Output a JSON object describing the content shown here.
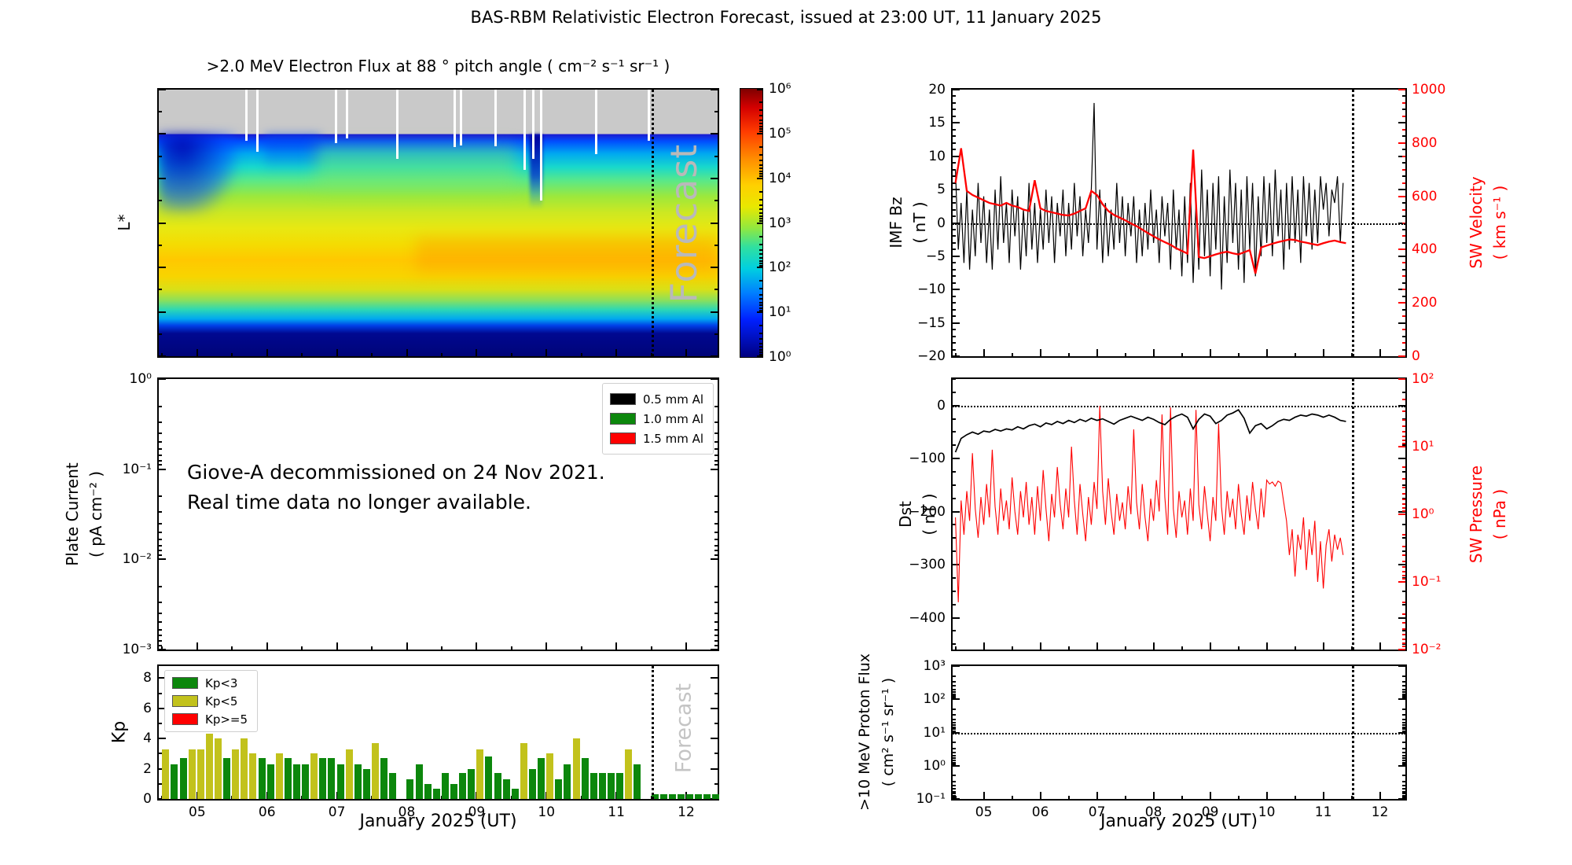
{
  "title": "BAS-RBM Relativistic Electron Forecast, issued at 23:00 UT, 11 January 2025",
  "colors": {
    "green": "#0c870c",
    "olive": "#c2c21c",
    "red": "#ff0000",
    "black": "#000000",
    "nodata_gray": "#c9c9c9",
    "watermark": "#b9b9b9"
  },
  "xaxis": {
    "label": "January 2025 (UT)",
    "min": 4.45,
    "max": 12.45,
    "ticks": [
      5,
      6,
      7,
      8,
      9,
      10,
      11,
      12
    ],
    "tick_labels": [
      "05",
      "06",
      "07",
      "08",
      "09",
      "10",
      "11",
      "12"
    ],
    "forecast_start": 11.5
  },
  "spectrogram": {
    "title": ">2.0 MeV Electron Flux at 88 ° pitch angle ( cm⁻² s⁻¹ sr⁻¹ )",
    "ylabel": "L*",
    "yticks": [
      8,
      7,
      6,
      5,
      4,
      3,
      2
    ],
    "forecast_label": "Forecast",
    "colorbar_tick_labels": [
      "10⁶",
      "10⁵",
      "10⁴",
      "10³",
      "10²",
      "10¹",
      "10⁰"
    ],
    "gaps": [
      {
        "x": 0.155,
        "d": 0.15
      },
      {
        "x": 0.175,
        "d": 0.4
      },
      {
        "x": 0.315,
        "d": 0.2
      },
      {
        "x": 0.335,
        "d": 0.1
      },
      {
        "x": 0.425,
        "d": 0.55
      },
      {
        "x": 0.527,
        "d": 0.3
      },
      {
        "x": 0.538,
        "d": 0.25
      },
      {
        "x": 0.6,
        "d": 0.28
      },
      {
        "x": 0.652,
        "d": 0.8
      },
      {
        "x": 0.668,
        "d": 0.55
      },
      {
        "x": 0.682,
        "d": 1.5
      },
      {
        "x": 0.78,
        "d": 0.45
      },
      {
        "x": 0.875,
        "d": 0.15
      }
    ]
  },
  "plate": {
    "ylabel_line1": "Plate Current",
    "ylabel_line2": "( pA cm⁻² )",
    "ytick_labels": [
      "10⁰",
      "10⁻¹",
      "10⁻²",
      "10⁻³"
    ],
    "legend": [
      {
        "label": "0.5 mm Al",
        "color": "#000000"
      },
      {
        "label": "1.0 mm Al",
        "color": "#0c870c"
      },
      {
        "label": "1.5 mm Al",
        "color": "#ff0000"
      }
    ],
    "annotation_line1": "Giove-A decommissioned on 24 Nov 2021.",
    "annotation_line2": "Real time data no longer available."
  },
  "kp": {
    "ylabel": "Kp",
    "yticks": [
      0,
      2,
      4,
      6,
      8
    ],
    "ymax": 8.8,
    "legend": [
      {
        "label": "Kp<3",
        "color": "#0c870c"
      },
      {
        "label": "Kp<5",
        "color": "#c2c21c"
      },
      {
        "label": "Kp>=5",
        "color": "#ff0000"
      }
    ],
    "forecast_label": "Forecast"
  },
  "imf": {
    "ylabel_line1": "IMF Bz",
    "ylabel_line2": "( nT )",
    "ymin": -20,
    "ymax": 20,
    "yticks": [
      20,
      15,
      10,
      5,
      0,
      -5,
      -10,
      -15,
      -20
    ],
    "y2label_line1": "SW Velocity",
    "y2label_line2": "( km s⁻¹ )",
    "y2min": 0,
    "y2max": 1000,
    "y2ticks": [
      1000,
      800,
      600,
      400,
      200,
      0
    ]
  },
  "dst": {
    "ylabel_line1": "Dst",
    "ylabel_line2": "( nT )",
    "ymin": -460,
    "ymax": 50,
    "yticks": [
      0,
      -100,
      -200,
      -300,
      -400
    ],
    "y2label_line1": "SW Pressure",
    "y2label_line2": "( nPa )",
    "y2tick_labels": [
      "10²",
      "10¹",
      "10⁰",
      "10⁻¹",
      "10⁻²"
    ]
  },
  "proton": {
    "ylabel_line1": ">10 MeV Proton Flux",
    "ylabel_line2": "( cm² s⁻¹ sr⁻¹ )",
    "ytick_labels": [
      "10³",
      "10²",
      "10¹",
      "10⁰",
      "10⁻¹"
    ]
  },
  "chart_data": [
    {
      "name": "electron_flux_spectrogram",
      "type": "heatmap",
      "x_range_days": [
        4.5,
        12.4
      ],
      "l_range": [
        2,
        8
      ],
      "no_data_above_l": 7,
      "color_scale_log10_flux_range": [
        0,
        6
      ],
      "typical_flux_log10_by_l": {
        "6.5": 1.5,
        "6": 2.3,
        "5.5": 3.0,
        "5": 3.4,
        "4.5": 3.8,
        "4": 3.8,
        "3.5": 3.2,
        "3": 2.2,
        "2.7": 1.0,
        "2.3": 0.2
      },
      "forecast_start_day": 11.5
    },
    {
      "name": "kp",
      "type": "bar",
      "x0": 4.55,
      "dx": 0.125,
      "values": [
        3.3,
        2.3,
        2.7,
        3.3,
        3.3,
        4.3,
        4.0,
        2.7,
        3.3,
        4.0,
        3.0,
        2.7,
        2.3,
        3.0,
        2.7,
        2.3,
        2.3,
        3.0,
        2.7,
        2.7,
        2.3,
        3.3,
        2.3,
        2.0,
        3.7,
        2.7,
        1.7,
        0.0,
        1.3,
        2.3,
        1.0,
        0.7,
        1.7,
        1.0,
        1.7,
        2.0,
        3.3,
        2.8,
        1.7,
        1.3,
        0.7,
        3.7,
        2.0,
        2.7,
        3.0,
        1.3,
        2.3,
        4.0,
        2.7,
        1.7,
        1.7,
        1.7,
        1.7,
        3.3,
        2.3
      ],
      "forecast_x0": 11.55,
      "forecast_values": [
        0.3,
        0.3,
        0.3,
        0.3,
        0.3,
        0.3,
        0.3,
        0.3
      ]
    },
    {
      "name": "imf_sw",
      "type": "line",
      "series": [
        {
          "name": "IMF Bz",
          "unit": "nT",
          "axis": "left",
          "color": "#000000",
          "x0": 4.5,
          "dx": 0.05,
          "y": [
            8,
            -4,
            3,
            -6,
            5,
            -7,
            2,
            -5,
            6,
            -3,
            4,
            -6,
            2,
            -7,
            5,
            -4,
            7,
            -3,
            3,
            -6,
            5,
            -2,
            4,
            -7,
            2,
            -5,
            6,
            -4,
            3,
            -6,
            2,
            -4,
            5,
            -3,
            4,
            -6,
            3,
            -2,
            5,
            -5,
            3,
            -4,
            6,
            -2,
            4,
            -5,
            2,
            -3,
            5,
            18,
            -4,
            5,
            -6,
            3,
            -5,
            2,
            -4,
            6,
            -3,
            4,
            -5,
            3,
            -2,
            4,
            -6,
            2,
            -5,
            3,
            -4,
            5,
            -3,
            2,
            -6,
            4,
            -2,
            3,
            -7,
            5,
            -4,
            2,
            -8,
            4,
            -6,
            6,
            -9,
            3,
            -7,
            8,
            -5,
            5,
            -8,
            6,
            -4,
            7,
            -10,
            4,
            -6,
            8,
            -3,
            6,
            -7,
            5,
            -9,
            7,
            -4,
            6,
            -8,
            4,
            -5,
            7,
            -3,
            6,
            -5,
            8,
            -2,
            5,
            -7,
            6,
            -4,
            7,
            -3,
            5,
            -6,
            7,
            -2,
            6,
            -4,
            5,
            -3,
            7,
            2,
            6,
            -2,
            5,
            3,
            7,
            -3,
            6
          ]
        },
        {
          "name": "SW Velocity",
          "unit": "km/s",
          "axis": "right",
          "color": "#ff0000",
          "x0": 4.5,
          "dx": 0.1,
          "y": [
            650,
            780,
            620,
            605,
            595,
            585,
            575,
            570,
            565,
            575,
            565,
            560,
            550,
            545,
            660,
            555,
            545,
            540,
            535,
            530,
            528,
            535,
            545,
            555,
            620,
            605,
            570,
            545,
            530,
            520,
            510,
            498,
            488,
            475,
            462,
            450,
            438,
            428,
            418,
            405,
            395,
            385,
            775,
            372,
            368,
            375,
            382,
            388,
            392,
            386,
            382,
            390,
            398,
            310,
            408,
            415,
            422,
            428,
            433,
            438,
            436,
            430,
            426,
            421,
            417,
            424,
            430,
            434,
            428,
            424
          ]
        }
      ]
    },
    {
      "name": "dst_pressure",
      "type": "line",
      "series": [
        {
          "name": "Dst",
          "unit": "nT",
          "axis": "left",
          "color": "#000000",
          "x0": 4.5,
          "dx": 0.1,
          "y": [
            -88,
            -62,
            -55,
            -50,
            -54,
            -48,
            -50,
            -45,
            -48,
            -44,
            -46,
            -40,
            -44,
            -38,
            -35,
            -40,
            -33,
            -36,
            -30,
            -34,
            -28,
            -32,
            -26,
            -30,
            -24,
            -28,
            -25,
            -30,
            -35,
            -28,
            -24,
            -20,
            -24,
            -28,
            -22,
            -26,
            -32,
            -36,
            -26,
            -20,
            -16,
            -22,
            -44,
            -26,
            -16,
            -20,
            -34,
            -28,
            -18,
            -14,
            -8,
            -24,
            -52,
            -38,
            -34,
            -44,
            -38,
            -30,
            -26,
            -28,
            -22,
            -18,
            -20,
            -16,
            -18,
            -22,
            -18,
            -22,
            -28,
            -30
          ]
        },
        {
          "name": "SW Pressure",
          "unit": "nPa",
          "axis": "right_log",
          "color": "#ff0000",
          "x0": 4.5,
          "dx": 0.05,
          "y": [
            0.9,
            0.05,
            1.6,
            0.5,
            2.2,
            0.8,
            8,
            1.2,
            0.45,
            1.8,
            0.7,
            2.8,
            0.9,
            9,
            1.3,
            0.5,
            2.4,
            0.8,
            1.6,
            0.6,
            3.5,
            1.1,
            0.5,
            2.2,
            0.9,
            3.0,
            0.7,
            1.8,
            0.5,
            2.6,
            0.8,
            4.5,
            1.2,
            0.4,
            2.0,
            0.9,
            5,
            1.4,
            0.6,
            2.4,
            0.9,
            10,
            1.6,
            0.5,
            2.8,
            1.0,
            0.4,
            1.8,
            0.7,
            3.0,
            1.2,
            40,
            2.2,
            0.7,
            3.4,
            1.1,
            0.5,
            2.0,
            0.8,
            1.5,
            0.6,
            2.6,
            1.0,
            18,
            1.5,
            0.6,
            2.8,
            0.9,
            0.4,
            1.7,
            0.8,
            3.2,
            1.1,
            30,
            1.8,
            0.5,
            38,
            1.2,
            0.45,
            2.2,
            0.9,
            1.6,
            0.5,
            2.4,
            0.8,
            35,
            1.4,
            0.6,
            2.6,
            1.0,
            0.4,
            1.8,
            0.8,
            22,
            1.3,
            0.5,
            2.2,
            0.9,
            1.7,
            0.6,
            2.8,
            1.0,
            0.5,
            1.9,
            0.8,
            3.0,
            1.2,
            0.6,
            2.4,
            0.9,
            3.2,
            2.8,
            3.0,
            2.6,
            3.1,
            2.9,
            1.5,
            0.8,
            0.25,
            0.6,
            0.12,
            0.5,
            0.3,
            0.9,
            0.15,
            0.6,
            0.25,
            0.8,
            0.1,
            0.4,
            0.08,
            0.35,
            0.6,
            0.2,
            0.5,
            0.3,
            0.45,
            0.25
          ]
        }
      ]
    },
    {
      "name": "proton_flux",
      "type": "line",
      "series": [],
      "note_visible_data": "none – empty panel, threshold line at 10¹"
    }
  ]
}
